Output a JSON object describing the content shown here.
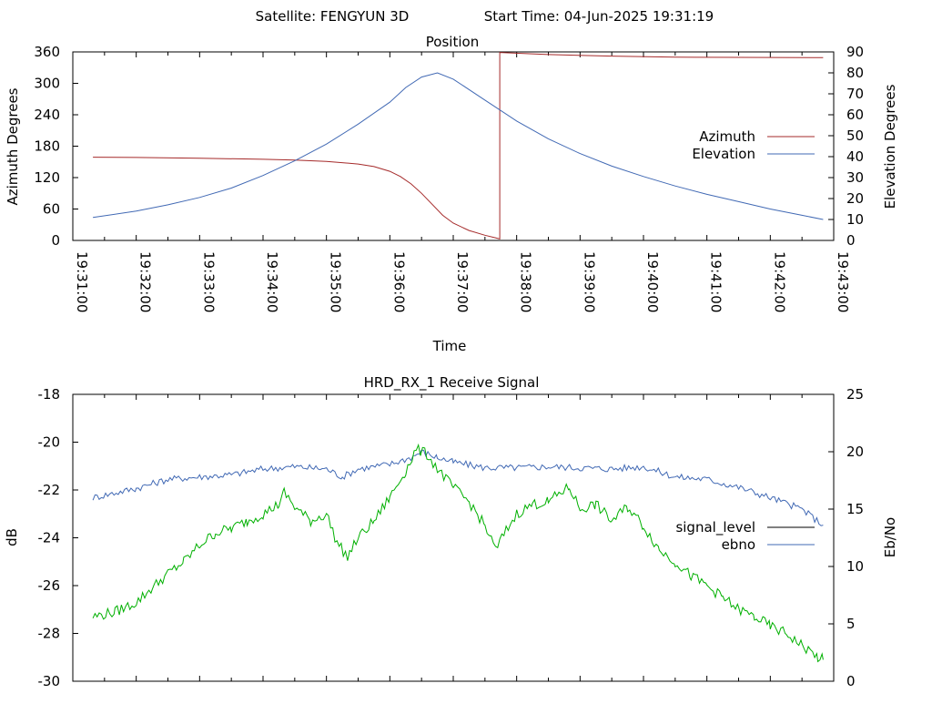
{
  "header": {
    "satellite": "Satellite: FENGYUN 3D",
    "start_time": "Start Time: 04-Jun-2025 19:31:19"
  },
  "chart_data": [
    {
      "type": "line",
      "title": "Position",
      "xlabel": "Time",
      "ylabel": "Azimuth Degrees",
      "y2label": "Elevation Degrees",
      "x_ticks": [
        "19:31:00",
        "19:32:00",
        "19:33:00",
        "19:34:00",
        "19:35:00",
        "19:36:00",
        "19:37:00",
        "19:38:00",
        "19:39:00",
        "19:40:00",
        "19:41:00",
        "19:42:00",
        "19:43:00"
      ],
      "xlim": [
        "19:31:00",
        "19:43:00"
      ],
      "ylim": [
        0,
        360
      ],
      "y_ticks": [
        0,
        60,
        120,
        180,
        240,
        300,
        360
      ],
      "y2lim": [
        0,
        90
      ],
      "y2_ticks": [
        0,
        10,
        20,
        30,
        40,
        50,
        60,
        70,
        80,
        90
      ],
      "legend_position": "right",
      "series": [
        {
          "name": "Azimuth",
          "axis": "y",
          "color": "#a52a2a",
          "points": [
            [
              "19:31:19",
              159
            ],
            [
              "19:32:00",
              158.5
            ],
            [
              "19:33:00",
              157
            ],
            [
              "19:34:00",
              155
            ],
            [
              "19:34:30",
              153.5
            ],
            [
              "19:35:00",
              151
            ],
            [
              "19:35:30",
              146
            ],
            [
              "19:35:45",
              141
            ],
            [
              "19:36:00",
              132
            ],
            [
              "19:36:10",
              122
            ],
            [
              "19:36:20",
              108
            ],
            [
              "19:36:30",
              90
            ],
            [
              "19:36:40",
              69
            ],
            [
              "19:36:50",
              48
            ],
            [
              "19:37:00",
              33
            ],
            [
              "19:37:15",
              19
            ],
            [
              "19:37:30",
              10
            ],
            [
              "19:37:40",
              5
            ],
            [
              "19:37:44",
              3
            ],
            [
              "19:37:44",
              359
            ],
            [
              "19:38:30",
              355
            ],
            [
              "19:39:30",
              352
            ],
            [
              "19:40:30",
              350
            ],
            [
              "19:41:30",
              349.5
            ],
            [
              "19:42:50",
              349
            ]
          ]
        },
        {
          "name": "Elevation",
          "axis": "y2",
          "color": "#4169b4",
          "points": [
            [
              "19:31:19",
              11
            ],
            [
              "19:32:00",
              14
            ],
            [
              "19:32:30",
              17
            ],
            [
              "19:33:00",
              20.5
            ],
            [
              "19:33:30",
              25
            ],
            [
              "19:34:00",
              31
            ],
            [
              "19:34:30",
              38
            ],
            [
              "19:35:00",
              46
            ],
            [
              "19:35:30",
              55.5
            ],
            [
              "19:36:00",
              66
            ],
            [
              "19:36:15",
              73
            ],
            [
              "19:36:30",
              78
            ],
            [
              "19:36:45",
              80
            ],
            [
              "19:37:00",
              77
            ],
            [
              "19:37:30",
              67
            ],
            [
              "19:38:00",
              57
            ],
            [
              "19:38:30",
              48.5
            ],
            [
              "19:39:00",
              41.5
            ],
            [
              "19:39:30",
              35.5
            ],
            [
              "19:40:00",
              30.5
            ],
            [
              "19:40:30",
              26
            ],
            [
              "19:41:00",
              22
            ],
            [
              "19:41:30",
              18.5
            ],
            [
              "19:42:00",
              15
            ],
            [
              "19:42:30",
              12
            ],
            [
              "19:42:50",
              10
            ]
          ]
        }
      ]
    },
    {
      "type": "line",
      "title": "HRD_RX_1 Receive Signal",
      "xlabel": "",
      "ylabel": "dB",
      "y2label": "Eb/No",
      "xlim": [
        "19:31:00",
        "19:43:00"
      ],
      "ylim": [
        -30,
        -18
      ],
      "y_ticks": [
        -30,
        -28,
        -26,
        -24,
        -22,
        -20,
        -18
      ],
      "y2lim": [
        0,
        25
      ],
      "y2_ticks": [
        0,
        5,
        10,
        15,
        20,
        25
      ],
      "legend_position": "right",
      "series": [
        {
          "name": "signal_level",
          "axis": "y",
          "color": "#000000",
          "points": []
        },
        {
          "name": "ebno",
          "axis": "y2",
          "color": "#4169b4",
          "points": [
            [
              "19:31:19",
              16
            ],
            [
              "19:32:00",
              16.8
            ],
            [
              "19:32:30",
              17.6
            ],
            [
              "19:33:00",
              17.8
            ],
            [
              "19:33:30",
              18
            ],
            [
              "19:34:00",
              18.5
            ],
            [
              "19:34:30",
              18.7
            ],
            [
              "19:35:00",
              18.5
            ],
            [
              "19:35:15",
              17.8
            ],
            [
              "19:35:30",
              18.5
            ],
            [
              "19:36:00",
              18.9
            ],
            [
              "19:36:20",
              19.5
            ],
            [
              "19:36:30",
              20
            ],
            [
              "19:36:45",
              19.5
            ],
            [
              "19:37:00",
              19.1
            ],
            [
              "19:37:30",
              18.6
            ],
            [
              "19:38:00",
              18.6
            ],
            [
              "19:38:30",
              18.7
            ],
            [
              "19:39:00",
              18.6
            ],
            [
              "19:39:30",
              18.5
            ],
            [
              "19:40:00",
              18.7
            ],
            [
              "19:40:30",
              17.8
            ],
            [
              "19:41:00",
              17.6
            ],
            [
              "19:41:30",
              16.9
            ],
            [
              "19:42:00",
              16
            ],
            [
              "19:42:30",
              15
            ],
            [
              "19:42:50",
              13.6
            ]
          ]
        },
        {
          "name": "",
          "axis": "y",
          "color": "#00b000",
          "points": [
            [
              "19:31:19",
              -27.3
            ],
            [
              "19:31:40",
              -27.1
            ],
            [
              "19:32:00",
              -26.7
            ],
            [
              "19:32:15",
              -26.1
            ],
            [
              "19:32:30",
              -25.5
            ],
            [
              "19:32:45",
              -25
            ],
            [
              "19:33:00",
              -24.3
            ],
            [
              "19:33:15",
              -23.8
            ],
            [
              "19:33:30",
              -23.6
            ],
            [
              "19:33:45",
              -23.3
            ],
            [
              "19:34:00",
              -23
            ],
            [
              "19:34:15",
              -22.6
            ],
            [
              "19:34:20",
              -22.1
            ],
            [
              "19:34:30",
              -22.7
            ],
            [
              "19:34:45",
              -23.3
            ],
            [
              "19:35:00",
              -23
            ],
            [
              "19:35:10",
              -24.2
            ],
            [
              "19:35:20",
              -24.8
            ],
            [
              "19:35:30",
              -24
            ],
            [
              "19:35:45",
              -23.3
            ],
            [
              "19:36:00",
              -22.3
            ],
            [
              "19:36:15",
              -21.2
            ],
            [
              "19:36:25",
              -20.3
            ],
            [
              "19:36:35",
              -20.5
            ],
            [
              "19:36:45",
              -21.1
            ],
            [
              "19:37:00",
              -21.9
            ],
            [
              "19:37:15",
              -22.5
            ],
            [
              "19:37:30",
              -23.5
            ],
            [
              "19:37:40",
              -24.5
            ],
            [
              "19:37:50",
              -23.7
            ],
            [
              "19:38:00",
              -23
            ],
            [
              "19:38:15",
              -22.6
            ],
            [
              "19:38:30",
              -22.5
            ],
            [
              "19:38:45",
              -22
            ],
            [
              "19:38:50",
              -21.9
            ],
            [
              "19:39:00",
              -22.8
            ],
            [
              "19:39:15",
              -22.6
            ],
            [
              "19:39:30",
              -23.3
            ],
            [
              "19:39:45",
              -22.7
            ],
            [
              "19:40:00",
              -23.5
            ],
            [
              "19:40:15",
              -24.5
            ],
            [
              "19:40:30",
              -25
            ],
            [
              "19:40:45",
              -25.6
            ],
            [
              "19:41:00",
              -26
            ],
            [
              "19:41:15",
              -26.5
            ],
            [
              "19:41:30",
              -27
            ],
            [
              "19:41:45",
              -27.3
            ],
            [
              "19:42:00",
              -27.7
            ],
            [
              "19:42:15",
              -28
            ],
            [
              "19:42:30",
              -28.5
            ],
            [
              "19:42:45",
              -29
            ],
            [
              "19:42:50",
              -29.1
            ]
          ]
        }
      ]
    }
  ]
}
